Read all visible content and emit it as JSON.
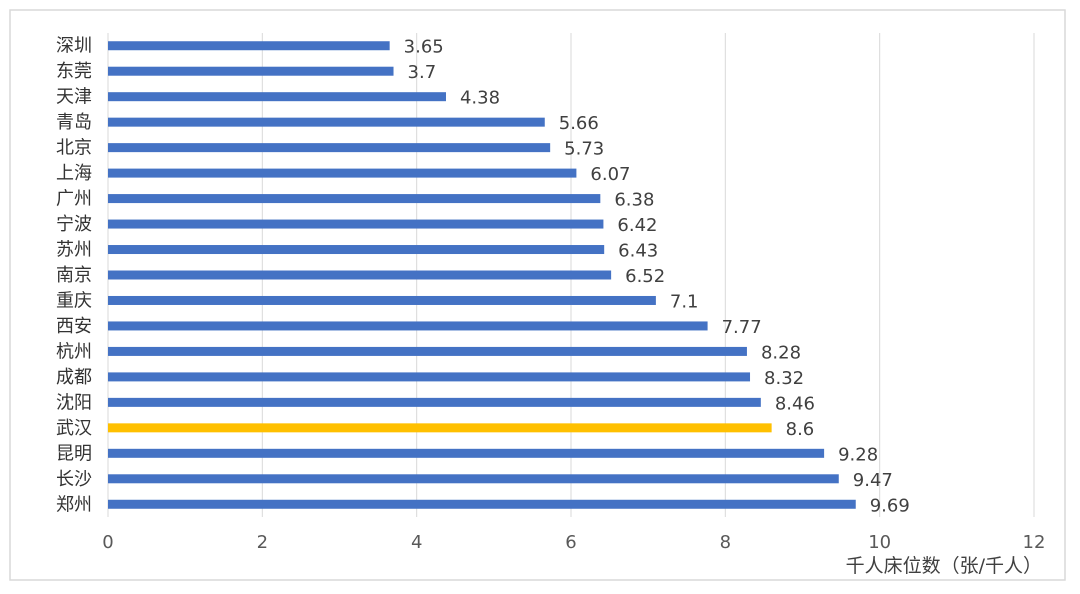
{
  "chart_data": {
    "type": "bar",
    "orientation": "horizontal",
    "categories": [
      "深圳",
      "东莞",
      "天津",
      "青岛",
      "北京",
      "上海",
      "广州",
      "宁波",
      "苏州",
      "南京",
      "重庆",
      "西安",
      "杭州",
      "成都",
      "沈阳",
      "武汉",
      "昆明",
      "长沙",
      "郑州"
    ],
    "values": [
      3.65,
      3.7,
      4.38,
      5.66,
      5.73,
      6.07,
      6.38,
      6.42,
      6.43,
      6.52,
      7.1,
      7.77,
      8.28,
      8.32,
      8.46,
      8.6,
      9.28,
      9.47,
      9.69
    ],
    "value_labels": [
      "3.65",
      "3.7",
      "4.38",
      "5.66",
      "5.73",
      "6.07",
      "6.38",
      "6.42",
      "6.43",
      "6.52",
      "7.1",
      "7.77",
      "8.28",
      "8.32",
      "8.46",
      "8.6",
      "9.28",
      "9.47",
      "9.69"
    ],
    "highlight_category": "武汉",
    "colors": {
      "bar": "#4472C4",
      "highlight": "#FFC000",
      "grid": "#D9D9D9"
    },
    "xlabel": "千人床位数（张/千人）",
    "xlim": [
      0,
      12
    ],
    "xticks": [
      0,
      2,
      4,
      6,
      8,
      10,
      12
    ],
    "xtick_labels": [
      "0",
      "2",
      "4",
      "6",
      "8",
      "10",
      "12"
    ],
    "grid": "vertical"
  }
}
